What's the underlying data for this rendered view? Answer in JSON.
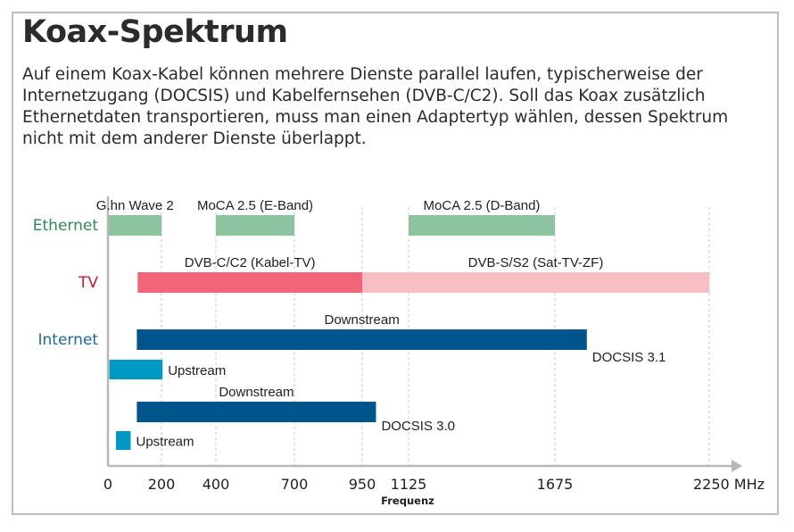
{
  "header": {
    "title": "Koax-Spektrum",
    "intro": "Auf einem Koax-Kabel können mehrere Dienste parallel laufen, typischerweise der Internetzugang (DOCSIS) und Kabelfernsehen (DVB-C/C2). Soll das Koax zusätzlich Ethernetdaten transportieren, muss man einen Adaptertyp wählen, dessen Spektrum nicht mit dem anderer Dienste überlappt."
  },
  "chart_data": {
    "type": "bar",
    "orientation": "horizontal-ranges",
    "xlabel": "Frequenz",
    "x_unit": "MHz",
    "x_ticks": [
      {
        "value": 0,
        "label": "0"
      },
      {
        "value": 200,
        "label": "200"
      },
      {
        "value": 400,
        "label": "400"
      },
      {
        "value": 700,
        "label": "700"
      },
      {
        "value": 950,
        "label": "950"
      },
      {
        "value": 1125,
        "label": "1125"
      },
      {
        "value": 1675,
        "label": "1675"
      },
      {
        "value": 2250,
        "label": "2250 MHz"
      }
    ],
    "gridlines": [
      200,
      400,
      700,
      950,
      1125,
      1675,
      2250
    ],
    "row_labels": [
      {
        "id": "ethernet",
        "label": "Ethernet",
        "color": "#2e8b57"
      },
      {
        "id": "tv",
        "label": "TV",
        "color": "#d6152f"
      },
      {
        "id": "internet",
        "label": "Internet",
        "color": "#1d6a9a"
      }
    ],
    "ranges": [
      {
        "label": "G.hn Wave 2",
        "start": 2,
        "end": 200,
        "color": "#8cc4a0",
        "row": "ethernet",
        "label_pos": "above"
      },
      {
        "label": "MoCA 2.5 (E-Band)",
        "start": 400,
        "end": 700,
        "color": "#8cc4a0",
        "row": "ethernet",
        "label_pos": "above"
      },
      {
        "label": "MoCA 2.5 (D-Band)",
        "start": 1125,
        "end": 1675,
        "color": "#8cc4a0",
        "row": "ethernet",
        "label_pos": "above"
      },
      {
        "label": "DVB-C/C2 (Kabel-TV)",
        "start": 111,
        "end": 950,
        "color": "#f26477",
        "row": "tv",
        "label_pos": "above"
      },
      {
        "label": "DVB-S/S2 (Sat-TV-ZF)",
        "start": 950,
        "end": 2250,
        "color": "#f9bdc4",
        "row": "tv",
        "label_pos": "above"
      },
      {
        "label": "Downstream",
        "start": 108,
        "end": 1794,
        "color": "#00568c",
        "row": "docsis31_down",
        "label_pos": "above"
      },
      {
        "label": "Upstream",
        "start": 5,
        "end": 204,
        "color": "#0099c3",
        "row": "docsis31_up",
        "label_pos": "right"
      },
      {
        "label": "Downstream",
        "start": 108,
        "end": 1002,
        "color": "#00568c",
        "row": "docsis30_down",
        "label_pos": "above"
      },
      {
        "label": "Upstream",
        "start": 30,
        "end": 85,
        "color": "#0099c3",
        "row": "docsis30_up",
        "label_pos": "right"
      }
    ],
    "annotations": [
      {
        "text": "DOCSIS 3.1",
        "near_x": 1794
      },
      {
        "text": "DOCSIS 3.0",
        "near_x": 1002
      }
    ]
  }
}
